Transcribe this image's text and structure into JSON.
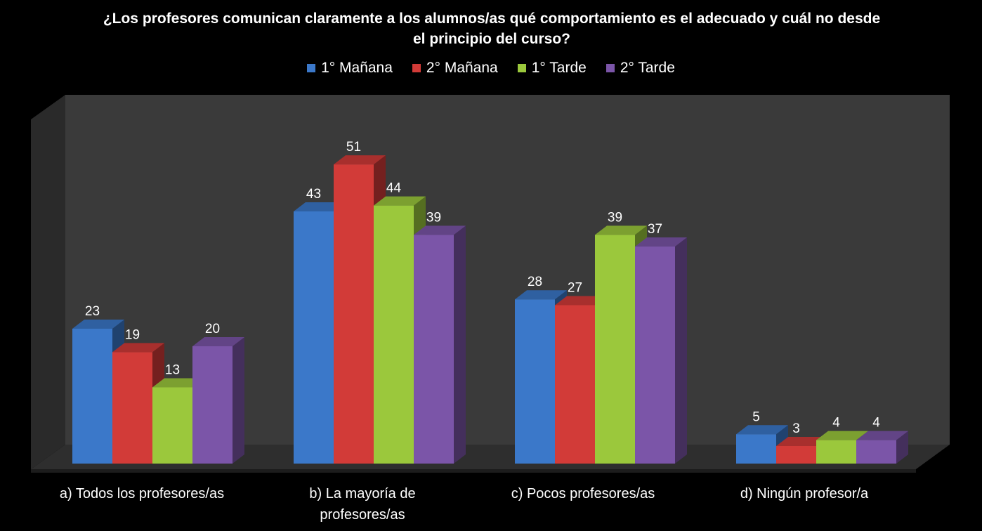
{
  "chart_data": {
    "type": "bar",
    "title": "¿Los profesores comunican claramente a los alumnos/as qué comportamiento es el adecuado y cuál no desde el principio del curso?",
    "title_lines": [
      "¿Los profesores comunican claramente a los alumnos/as qué comportamiento es el adecuado y cuál no desde",
      "el principio del curso?"
    ],
    "categories": [
      "a) Todos los profesores/as",
      "b) La mayoría de profesores/as",
      "c) Pocos profesores/as",
      "d) Ningún profesor/a"
    ],
    "category_lines": [
      [
        "a) Todos los profesores/as"
      ],
      [
        "b) La mayoría de",
        "profesores/as"
      ],
      [
        "c) Pocos profesores/as"
      ],
      [
        "d) Ningún profesor/a"
      ]
    ],
    "series": [
      {
        "name": "1° Mañana",
        "values": [
          23,
          43,
          28,
          5
        ],
        "color": "#3b78c9"
      },
      {
        "name": "2° Mañana",
        "values": [
          19,
          51,
          27,
          3
        ],
        "color": "#d23b38"
      },
      {
        "name": "1° Tarde",
        "values": [
          13,
          44,
          39,
          4
        ],
        "color": "#9bc83c"
      },
      {
        "name": "2° Tarde",
        "values": [
          20,
          39,
          37,
          4
        ],
        "color": "#7b55a8"
      }
    ],
    "ylim": [
      0,
      60
    ],
    "legend_position": "top",
    "grid": false,
    "style": "3d-clustered-column"
  }
}
